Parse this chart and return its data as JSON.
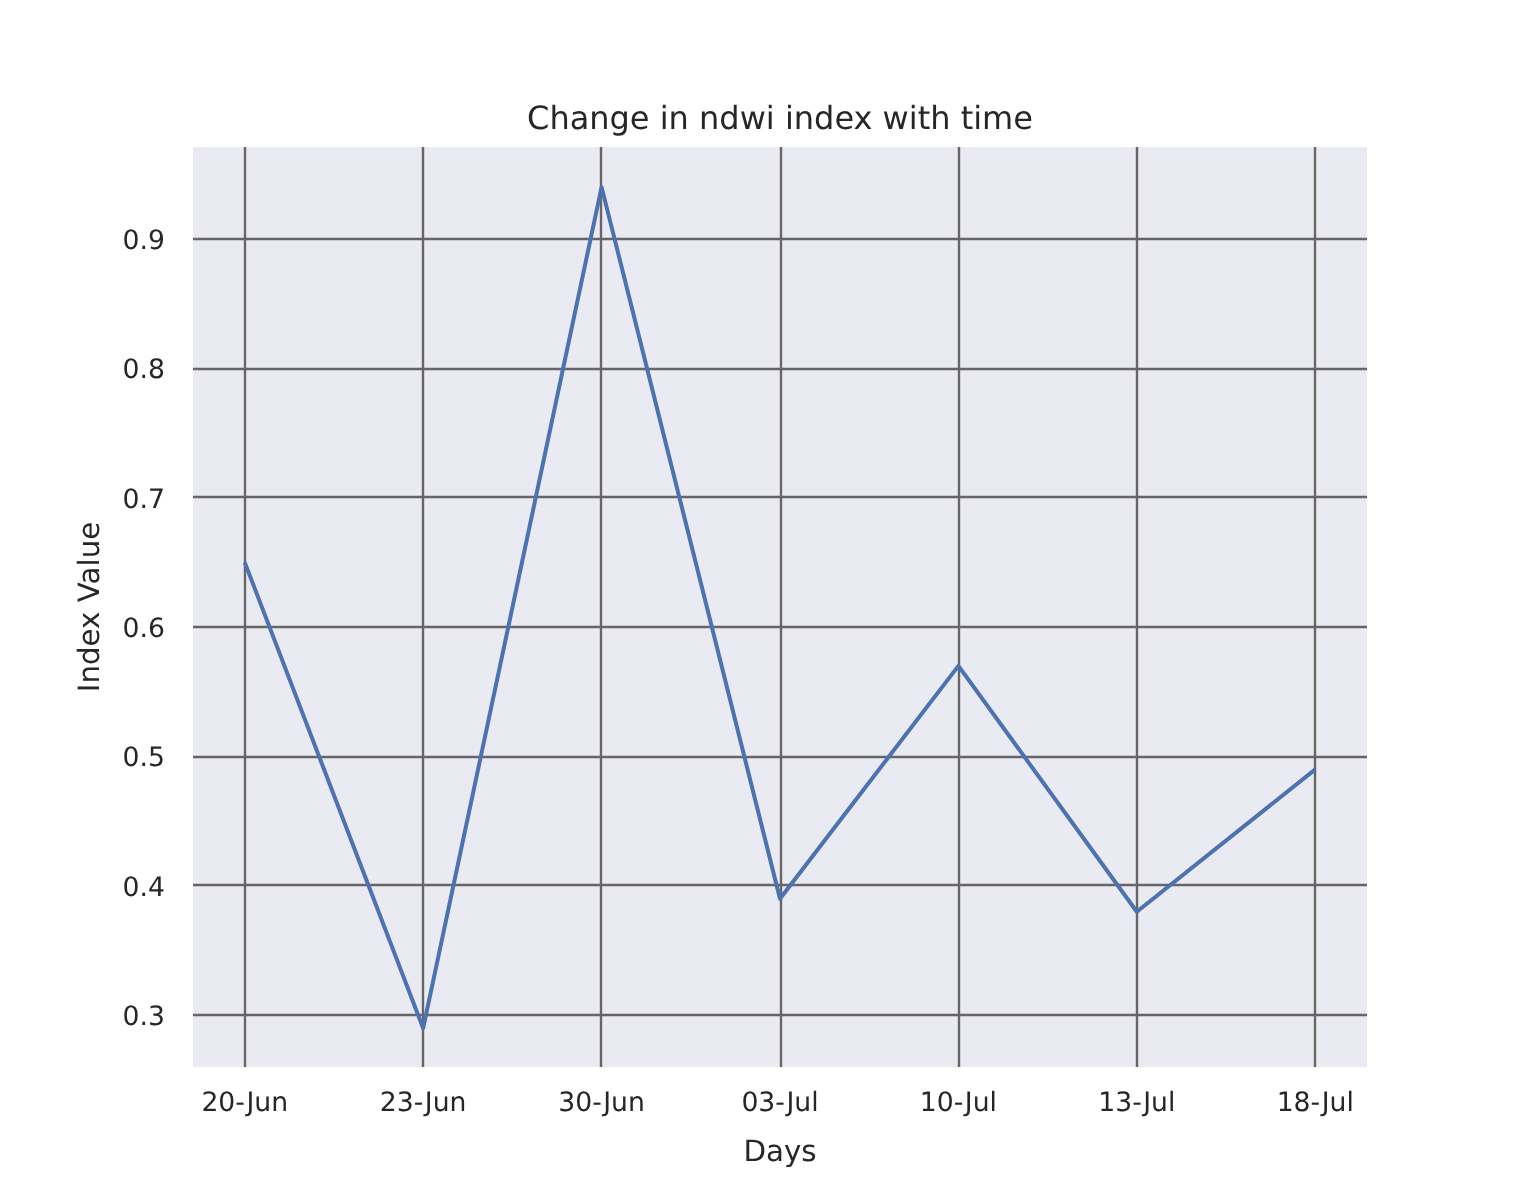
{
  "chart_data": {
    "type": "line",
    "title": "Change in ndwi index with time",
    "xlabel": "Days",
    "ylabel": "Index Value",
    "categories": [
      "20-Jun",
      "23-Jun",
      "30-Jun",
      "03-Jul",
      "10-Jul",
      "13-Jul",
      "18-Jul"
    ],
    "series": [
      {
        "color": "#4c72b0",
        "values": [
          0.65,
          0.29,
          0.94,
          0.39,
          0.57,
          0.38,
          0.49
        ]
      }
    ],
    "ylim": [
      0.26,
      0.971
    ],
    "yticks": [
      0.3,
      0.4,
      0.5,
      0.6,
      0.7,
      0.8,
      0.9
    ],
    "grid": true,
    "line_style": "solid"
  }
}
